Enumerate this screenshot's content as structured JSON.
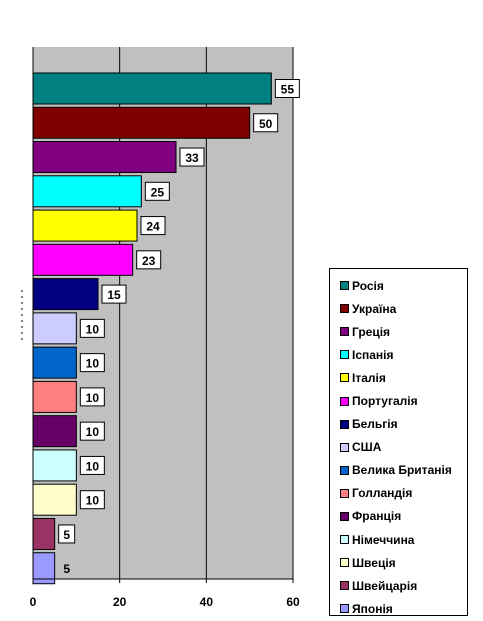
{
  "chart_data": {
    "type": "bar",
    "orientation": "horizontal",
    "categories": [
      "Росія",
      "Україна",
      "Греція",
      "Іспанія",
      "Італія",
      "Португалія",
      "Бельгія",
      "США",
      "Велика Британія",
      "Голландія",
      "Франція",
      "Німеччина",
      "Швеція",
      "Швейцарія",
      "Японія"
    ],
    "values": [
      55,
      50,
      33,
      25,
      24,
      23,
      15,
      10,
      10,
      10,
      10,
      10,
      10,
      5,
      5
    ],
    "colors": [
      "#008080",
      "#800000",
      "#800080",
      "#00FFFF",
      "#FFFF00",
      "#FF00FF",
      "#000080",
      "#CCCCFF",
      "#0066CC",
      "#FF8080",
      "#660066",
      "#CCFFFF",
      "#FFFFCC",
      "#993366",
      "#9999FF"
    ],
    "xlim": [
      0,
      60
    ],
    "xticks": [
      "0",
      "20",
      "40",
      "60"
    ],
    "grid": true,
    "plot_background": "#C0C0C0",
    "legend_position": "right"
  }
}
